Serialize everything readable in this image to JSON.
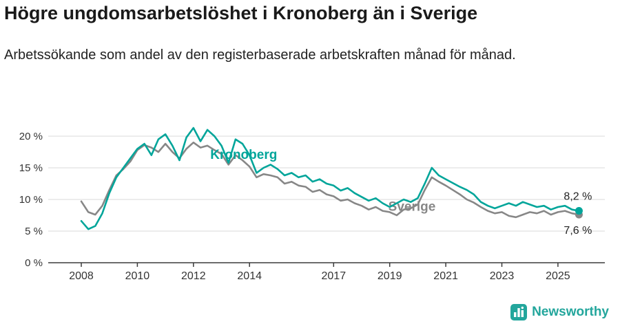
{
  "branding": {
    "name": "Newsworthy",
    "color": "#23a69c"
  },
  "chart_data": {
    "type": "line",
    "title": "Högre ungdomsarbetslöshet i Kronoberg än i Sverige",
    "subtitle": "Arbetssökande som andel av den registerbaserade arbetskraften månad för månad.",
    "xlabel": "",
    "ylabel": "",
    "ylim": [
      0,
      22
    ],
    "xlim": [
      2007.7,
      2026.3
    ],
    "grid": true,
    "legend": "inline-labels",
    "yticks": [
      0,
      5,
      10,
      15,
      20
    ],
    "ytick_labels": [
      "0 %",
      "5 %",
      "10 %",
      "15 %",
      "20 %"
    ],
    "xticks": [
      2008,
      2010,
      2012,
      2014,
      2017,
      2019,
      2021,
      2023,
      2025
    ],
    "x": [
      2008,
      2008.25,
      2008.5,
      2008.75,
      2009,
      2009.25,
      2009.5,
      2009.75,
      2010,
      2010.25,
      2010.5,
      2010.75,
      2011,
      2011.25,
      2011.5,
      2011.75,
      2012,
      2012.25,
      2012.5,
      2012.75,
      2013,
      2013.25,
      2013.5,
      2013.75,
      2014,
      2014.25,
      2014.5,
      2014.75,
      2015,
      2015.25,
      2015.5,
      2015.75,
      2016,
      2016.25,
      2016.5,
      2016.75,
      2017,
      2017.25,
      2017.5,
      2017.75,
      2018,
      2018.25,
      2018.5,
      2018.75,
      2019,
      2019.25,
      2019.5,
      2019.75,
      2020,
      2020.25,
      2020.5,
      2020.75,
      2021,
      2021.25,
      2021.5,
      2021.75,
      2022,
      2022.25,
      2022.5,
      2022.75,
      2023,
      2023.25,
      2023.5,
      2023.75,
      2024,
      2024.25,
      2024.5,
      2024.75,
      2025,
      2025.25,
      2025.5,
      2025.75
    ],
    "series": [
      {
        "name": "Kronoberg",
        "color": "#00a59a",
        "end_label": "8,2 %",
        "end_label_dy": -16,
        "label_pos": {
          "x": 2012.6,
          "y": 16.4
        },
        "values": [
          6.6,
          5.3,
          5.8,
          7.8,
          11.0,
          13.5,
          15.0,
          16.5,
          18.0,
          18.8,
          17.0,
          19.5,
          20.3,
          18.5,
          16.2,
          19.8,
          21.3,
          19.2,
          21.0,
          20.0,
          18.5,
          15.8,
          19.5,
          18.8,
          17.0,
          14.2,
          15.0,
          15.5,
          14.8,
          13.8,
          14.2,
          13.5,
          13.8,
          12.8,
          13.2,
          12.5,
          12.2,
          11.4,
          11.8,
          11.0,
          10.4,
          9.8,
          10.2,
          9.4,
          8.8,
          9.4,
          10.0,
          9.6,
          10.2,
          12.5,
          15.0,
          13.8,
          13.2,
          12.6,
          12.0,
          11.5,
          10.8,
          9.6,
          9.0,
          8.6,
          9.0,
          9.4,
          9.0,
          9.6,
          9.2,
          8.8,
          9.0,
          8.4,
          8.8,
          9.0,
          8.4,
          8.2
        ]
      },
      {
        "name": "Sverige",
        "color": "#878787",
        "end_label": "7,6 %",
        "end_label_dy": 28,
        "label_pos": {
          "x": 2018.95,
          "y": 8.2
        },
        "values": [
          9.7,
          8.0,
          7.6,
          9.0,
          11.5,
          13.8,
          14.8,
          16.0,
          17.8,
          18.6,
          18.2,
          17.5,
          18.8,
          17.5,
          16.5,
          18.0,
          19.0,
          18.2,
          18.5,
          17.8,
          17.2,
          15.5,
          17.0,
          16.2,
          15.2,
          13.5,
          14.0,
          13.8,
          13.5,
          12.5,
          12.8,
          12.2,
          12.0,
          11.2,
          11.5,
          10.8,
          10.5,
          9.8,
          10.0,
          9.4,
          9.0,
          8.4,
          8.8,
          8.2,
          8.0,
          7.5,
          8.4,
          8.6,
          9.2,
          11.5,
          13.5,
          12.8,
          12.2,
          11.5,
          10.8,
          10.0,
          9.5,
          8.8,
          8.2,
          7.8,
          8.0,
          7.4,
          7.2,
          7.6,
          8.0,
          7.8,
          8.2,
          7.6,
          8.0,
          8.2,
          7.8,
          7.6
        ]
      }
    ]
  }
}
